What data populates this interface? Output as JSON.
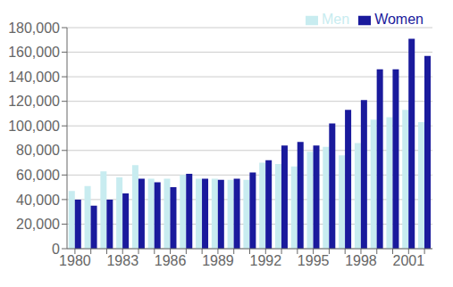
{
  "chart_data": {
    "type": "bar",
    "categories": [
      "1980",
      null,
      null,
      "1983",
      null,
      null,
      "1986",
      null,
      null,
      "1989",
      null,
      null,
      "1992",
      null,
      null,
      "1995",
      null,
      null,
      "1998",
      null,
      null,
      "2001",
      null
    ],
    "series": [
      {
        "name": "Men",
        "color": "#c8ecf0",
        "values": [
          47000,
          51000,
          63000,
          58000,
          68000,
          57000,
          57000,
          60000,
          57000,
          57000,
          56000,
          56000,
          70000,
          69000,
          67000,
          79000,
          83000,
          76000,
          86000,
          105000,
          107000,
          113000,
          103000
        ]
      },
      {
        "name": "Women",
        "color": "#1a1a9c",
        "values": [
          40000,
          35000,
          40000,
          45000,
          57000,
          54000,
          50000,
          61000,
          57000,
          56000,
          57000,
          62000,
          72000,
          84000,
          87000,
          84000,
          102000,
          113000,
          121000,
          146000,
          146000,
          171000,
          157000
        ]
      }
    ],
    "ylim": [
      0,
      180000
    ],
    "yticks": [
      0,
      {
        "value": 20000,
        "label": "20,000"
      },
      {
        "value": 40000,
        "label": "40,000"
      },
      {
        "value": 60000,
        "label": "60,000"
      },
      {
        "value": 80000,
        "label": "80,000"
      },
      {
        "value": 100000,
        "label": "100,000"
      },
      {
        "value": 120000,
        "label": "120,000"
      },
      {
        "value": 140000,
        "label": "140,000"
      },
      {
        "value": 160000,
        "label": "160,000"
      },
      {
        "value": 180000,
        "label": "180,000"
      }
    ],
    "grid": true,
    "legend": "upper right"
  }
}
